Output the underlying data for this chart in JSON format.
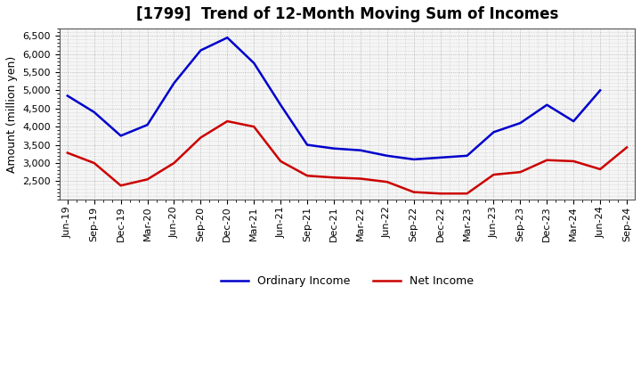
{
  "title": "[1799]  Trend of 12-Month Moving Sum of Incomes",
  "ylabel": "Amount (million yen)",
  "x_labels": [
    "Jun-19",
    "Sep-19",
    "Dec-19",
    "Mar-20",
    "Jun-20",
    "Sep-20",
    "Dec-20",
    "Mar-21",
    "Jun-21",
    "Sep-21",
    "Dec-21",
    "Mar-22",
    "Jun-22",
    "Sep-22",
    "Dec-22",
    "Mar-23",
    "Jun-23",
    "Sep-23",
    "Dec-23",
    "Mar-24",
    "Jun-24",
    "Sep-24"
  ],
  "ordinary_income": [
    4850,
    4400,
    3750,
    4050,
    5200,
    6100,
    6450,
    5750,
    4600,
    3500,
    3400,
    3350,
    3200,
    3100,
    3150,
    3200,
    3850,
    4100,
    4600,
    4150,
    5000,
    null
  ],
  "net_income": [
    3280,
    3000,
    2380,
    2550,
    3000,
    3700,
    4150,
    4000,
    3050,
    2650,
    2600,
    2570,
    2480,
    2200,
    2160,
    2160,
    2680,
    2750,
    3080,
    3050,
    2830,
    3430
  ],
  "ordinary_color": "#0000cc",
  "net_color": "#cc0000",
  "ylim": [
    2000,
    6700
  ],
  "yticks": [
    2500,
    3000,
    3500,
    4000,
    4500,
    5000,
    5500,
    6000,
    6500
  ],
  "background_color": "#ffffff",
  "plot_bg_color": "#f5f5f5",
  "grid_color": "#999999",
  "title_fontsize": 12,
  "axis_label_fontsize": 9,
  "tick_fontsize": 8,
  "legend_labels": [
    "Ordinary Income",
    "Net Income"
  ],
  "line_width": 1.8
}
